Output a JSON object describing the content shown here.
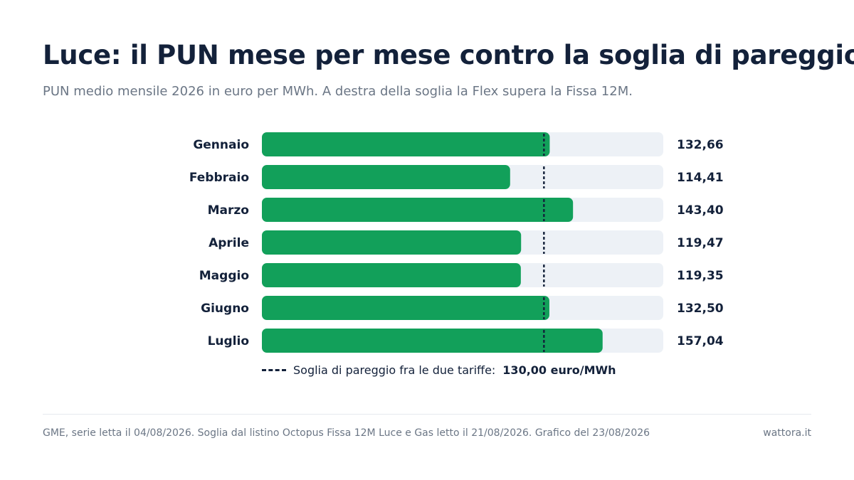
{
  "header": {
    "title": "Luce: il PUN mese per mese contro la soglia di pareggio",
    "subtitle": "PUN medio mensile 2026 in euro per MWh. A destra della soglia la Flex supera la Fissa 12M."
  },
  "legend": {
    "label": "Soglia di pareggio fra le due tariffe:",
    "value": "130,00 euro/MWh"
  },
  "footer": {
    "source": "GME, serie letta il 04/08/2026. Soglia dal listino Octopus Fissa 12M Luce e Gas letto il 21/08/2026. Grafico del 23/08/2026",
    "brand": "wattora.it"
  },
  "colors": {
    "bar": "#12a05a",
    "track": "#edf1f6",
    "threshold": "#13213a"
  },
  "chart_data": {
    "type": "bar",
    "orientation": "horizontal",
    "categories": [
      "Gennaio",
      "Febbraio",
      "Marzo",
      "Aprile",
      "Maggio",
      "Giugno",
      "Luglio"
    ],
    "values": [
      132.66,
      114.41,
      143.4,
      119.47,
      119.35,
      132.5,
      157.04
    ],
    "value_labels": [
      "132,66",
      "114,41",
      "143,40",
      "119,47",
      "119,35",
      "132,50",
      "157,04"
    ],
    "threshold": 130.0,
    "xlim": [
      0,
      185
    ],
    "grid": false
  }
}
